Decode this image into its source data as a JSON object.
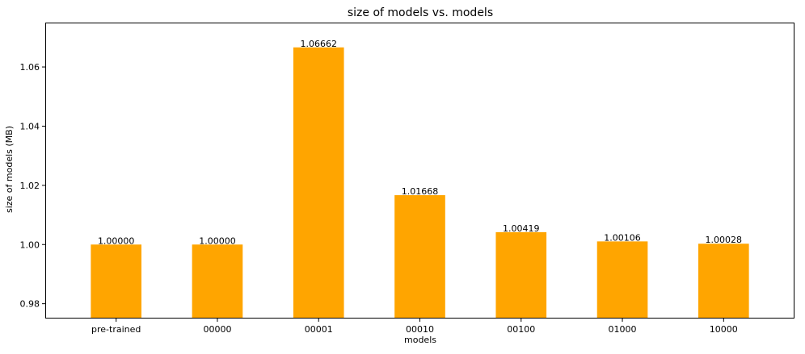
{
  "chart_data": {
    "type": "bar",
    "title": "size of models vs. models",
    "xlabel": "models",
    "ylabel": "size of models (MB)",
    "categories": [
      "pre-trained",
      "00000",
      "00001",
      "00010",
      "00100",
      "01000",
      "10000"
    ],
    "values": [
      1.0,
      1.0,
      1.06662,
      1.01668,
      1.00419,
      1.00106,
      1.00028
    ],
    "data_labels": [
      "1.00000",
      "1.00000",
      "1.06662",
      "1.01668",
      "1.00419",
      "1.00106",
      "1.00028"
    ],
    "ylim": [
      0.975,
      1.075
    ],
    "yticks": [
      0.98,
      1.0,
      1.02,
      1.04,
      1.06
    ],
    "ytick_labels": [
      "0.98",
      "1.00",
      "1.02",
      "1.04",
      "1.06"
    ],
    "bar_color": "#ffa500",
    "grid": false,
    "legend": "none"
  }
}
